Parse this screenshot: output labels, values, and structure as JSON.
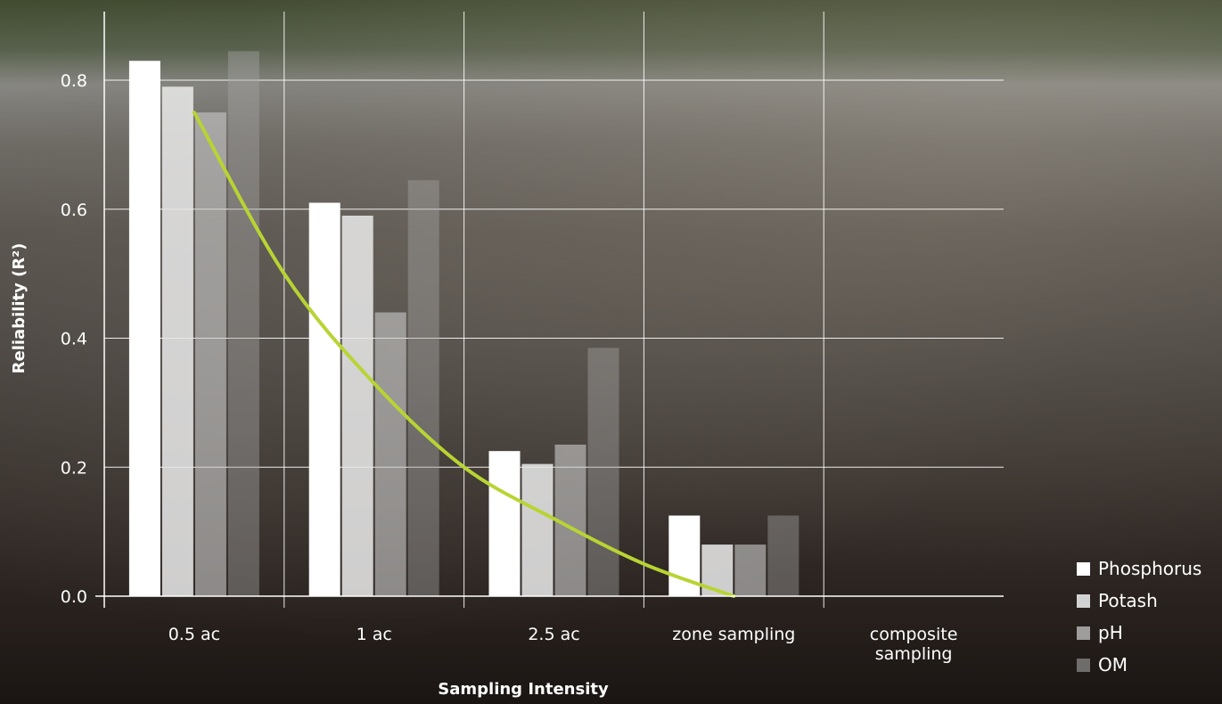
{
  "chart_data": {
    "type": "bar",
    "xlabel": "Sampling Intensity",
    "ylabel": "Reliability (R²)",
    "ylim": [
      0,
      0.8
    ],
    "yticks": [
      "0.0",
      "0.2",
      "0.4",
      "0.6",
      "0.8"
    ],
    "grid": true,
    "legend_position": "bottom-right",
    "categories": [
      "0.5 ac",
      "1 ac",
      "2.5 ac",
      "zone sampling",
      "composite sampling"
    ],
    "series": [
      {
        "name": "Phosphorus",
        "color": "#ffffff",
        "opacity": 1.0,
        "values": [
          0.83,
          0.61,
          0.225,
          0.125,
          null
        ]
      },
      {
        "name": "Potash",
        "color": "#e6e6e6",
        "opacity": 0.88,
        "values": [
          0.79,
          0.59,
          0.205,
          0.08,
          null
        ]
      },
      {
        "name": "pH",
        "color": "#c8c8c8",
        "opacity": 0.62,
        "values": [
          0.75,
          0.44,
          0.235,
          0.08,
          null
        ]
      },
      {
        "name": "OM",
        "color": "#a5a5a5",
        "opacity": 0.42,
        "values": [
          0.845,
          0.645,
          0.385,
          0.125,
          null
        ]
      }
    ],
    "trendline": {
      "type": "curve",
      "color": "#b8d433",
      "points": [
        [
          0.5,
          0.75
        ],
        [
          1.0,
          0.5
        ],
        [
          1.5,
          0.33
        ],
        [
          2.0,
          0.2
        ],
        [
          2.5,
          0.12
        ],
        [
          3.0,
          0.05
        ],
        [
          3.5,
          0.0
        ]
      ]
    }
  }
}
